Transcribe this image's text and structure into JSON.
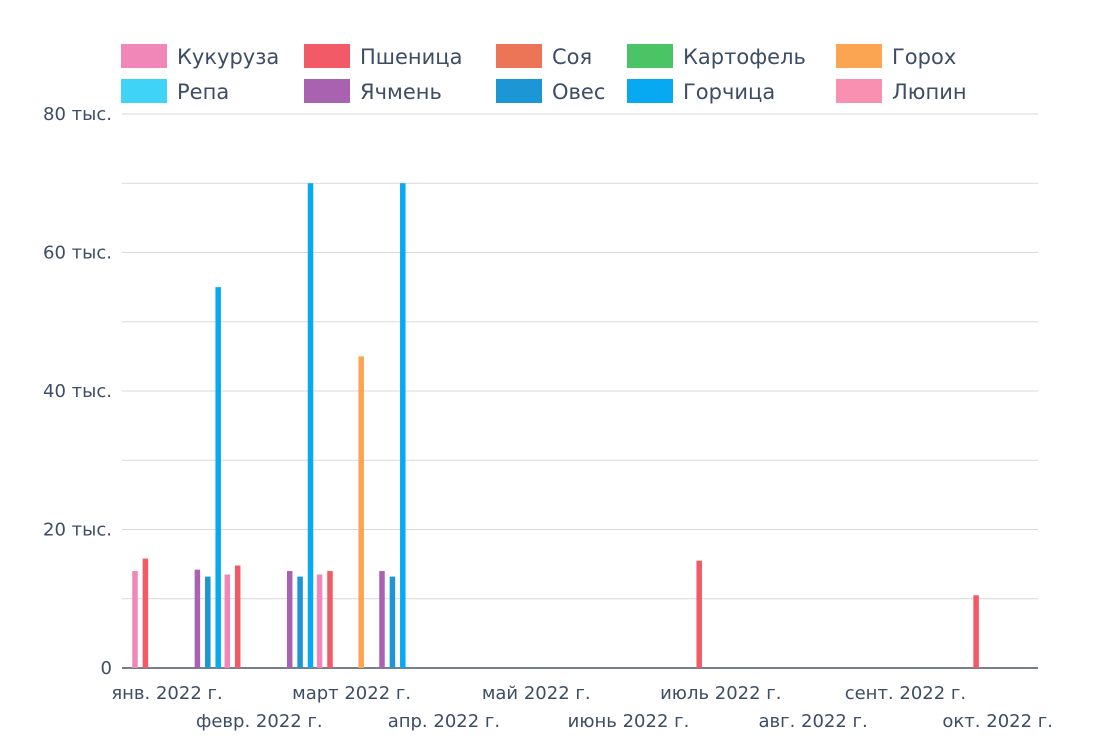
{
  "chart_data": {
    "type": "bar",
    "y_ticks": [
      "0",
      "20 тыс.",
      "40 тыс.",
      "60 тыс.",
      "80 тыс."
    ],
    "y_tick_values": [
      0,
      20000,
      40000,
      60000,
      80000
    ],
    "ylim": [
      0,
      80000
    ],
    "grid": true,
    "legend_position": "top",
    "x_ticks": [
      {
        "label": "янв. 2022 г.",
        "month": 0
      },
      {
        "label": "февр. 2022 г.",
        "month": 1
      },
      {
        "label": "март 2022 г.",
        "month": 2
      },
      {
        "label": "апр. 2022 г.",
        "month": 3
      },
      {
        "label": "май 2022 г.",
        "month": 4
      },
      {
        "label": "июнь 2022 г.",
        "month": 5
      },
      {
        "label": "июль 2022 г.",
        "month": 6
      },
      {
        "label": "авг. 2022 г.",
        "month": 7
      },
      {
        "label": "сент. 2022 г.",
        "month": 8
      },
      {
        "label": "окт. 2022 г.",
        "month": 9
      }
    ],
    "series": [
      {
        "name": "Кукуруза",
        "color": "#f087b8",
        "points": [
          {
            "x": "янв. 2022 г.",
            "y": 14000
          },
          {
            "x": "февр. 2022 г.",
            "y": 13500
          },
          {
            "x": "март 2022 г.",
            "y": 13500
          }
        ]
      },
      {
        "name": "Пшеница",
        "color": "#f25a67",
        "points": [
          {
            "x": "янв. 2022 г.",
            "y": 15800
          },
          {
            "x": "февр. 2022 г.",
            "y": 14800
          },
          {
            "x": "март 2022 г.",
            "y": 14000
          },
          {
            "x": "июль 2022 г.",
            "y": 15500
          },
          {
            "x": "окт. 2022 г.",
            "y": 10500
          }
        ]
      },
      {
        "name": "Соя",
        "color": "#ec7558",
        "points": []
      },
      {
        "name": "Картофель",
        "color": "#4ac464",
        "points": []
      },
      {
        "name": "Горох",
        "color": "#fba452",
        "points": [
          {
            "x": "март 2022 г.",
            "y": 45000
          }
        ]
      },
      {
        "name": "Репа",
        "color": "#3ed3f7",
        "points": []
      },
      {
        "name": "Ячмень",
        "color": "#a862b0",
        "points": [
          {
            "x": "янв. 2022 г.",
            "y": 14200
          },
          {
            "x": "февр. 2022 г.",
            "y": 14000
          },
          {
            "x": "март 2022 г.",
            "y": 14000
          }
        ]
      },
      {
        "name": "Овес",
        "color": "#1c96d4",
        "points": [
          {
            "x": "янв. 2022 г.",
            "y": 13200
          },
          {
            "x": "февр. 2022 г.",
            "y": 13200
          },
          {
            "x": "март 2022 г.",
            "y": 13200
          }
        ]
      },
      {
        "name": "Горчица",
        "color": "#06a9f2",
        "points": [
          {
            "x": "янв. 2022 г.",
            "y": 55000
          },
          {
            "x": "февр. 2022 г.",
            "y": 70000
          },
          {
            "x": "март 2022 г.",
            "y": 70000
          }
        ]
      },
      {
        "name": "Люпин",
        "color": "#f98fb1",
        "points": []
      }
    ]
  }
}
